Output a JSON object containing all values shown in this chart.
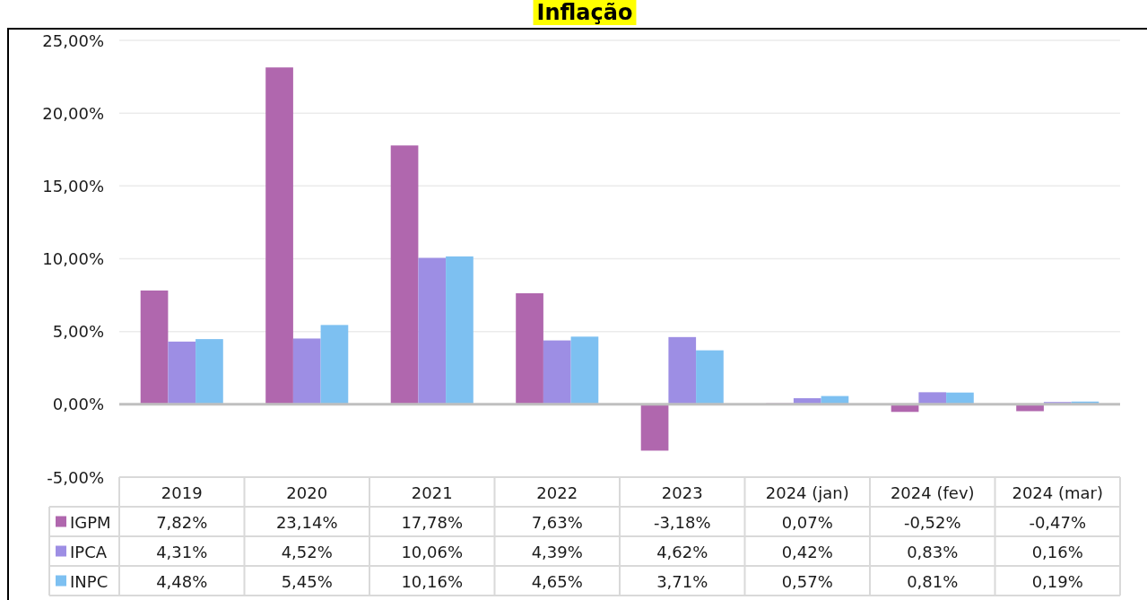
{
  "chart_data": {
    "type": "bar",
    "title": "Inflação",
    "categories": [
      "2019",
      "2020",
      "2021",
      "2022",
      "2023",
      "2024 (jan)",
      "2024 (fev)",
      "2024 (mar)"
    ],
    "series": [
      {
        "name": "IGPM",
        "color": "#b067ae",
        "values": [
          7.82,
          23.14,
          17.78,
          7.63,
          -3.18,
          0.07,
          -0.52,
          -0.47
        ],
        "value_labels": [
          "7,82%",
          "23,14%",
          "17,78%",
          "7,63%",
          "-3,18%",
          "0,07%",
          "-0,52%",
          "-0,47%"
        ]
      },
      {
        "name": "IPCA",
        "color": "#9d8ee4",
        "values": [
          4.31,
          4.52,
          10.06,
          4.39,
          4.62,
          0.42,
          0.83,
          0.16
        ],
        "value_labels": [
          "4,31%",
          "4,52%",
          "10,06%",
          "4,39%",
          "4,62%",
          "0,42%",
          "0,83%",
          "0,16%"
        ]
      },
      {
        "name": "INPC",
        "color": "#7dc0f1",
        "values": [
          4.48,
          5.45,
          10.16,
          4.65,
          3.71,
          0.57,
          0.81,
          0.19
        ],
        "value_labels": [
          "4,48%",
          "5,45%",
          "10,16%",
          "4,65%",
          "3,71%",
          "0,57%",
          "0,81%",
          "0,19%"
        ]
      }
    ],
    "ylim": [
      -5,
      25
    ],
    "yticks": [
      {
        "value": -5,
        "label": "-5,00%"
      },
      {
        "value": 0,
        "label": "0,00%"
      },
      {
        "value": 5,
        "label": "5,00%"
      },
      {
        "value": 10,
        "label": "10,00%"
      },
      {
        "value": 15,
        "label": "15,00%"
      },
      {
        "value": 20,
        "label": "20,00%"
      },
      {
        "value": 25,
        "label": "25,00%"
      }
    ],
    "grid": "y",
    "legend": "bottom"
  }
}
